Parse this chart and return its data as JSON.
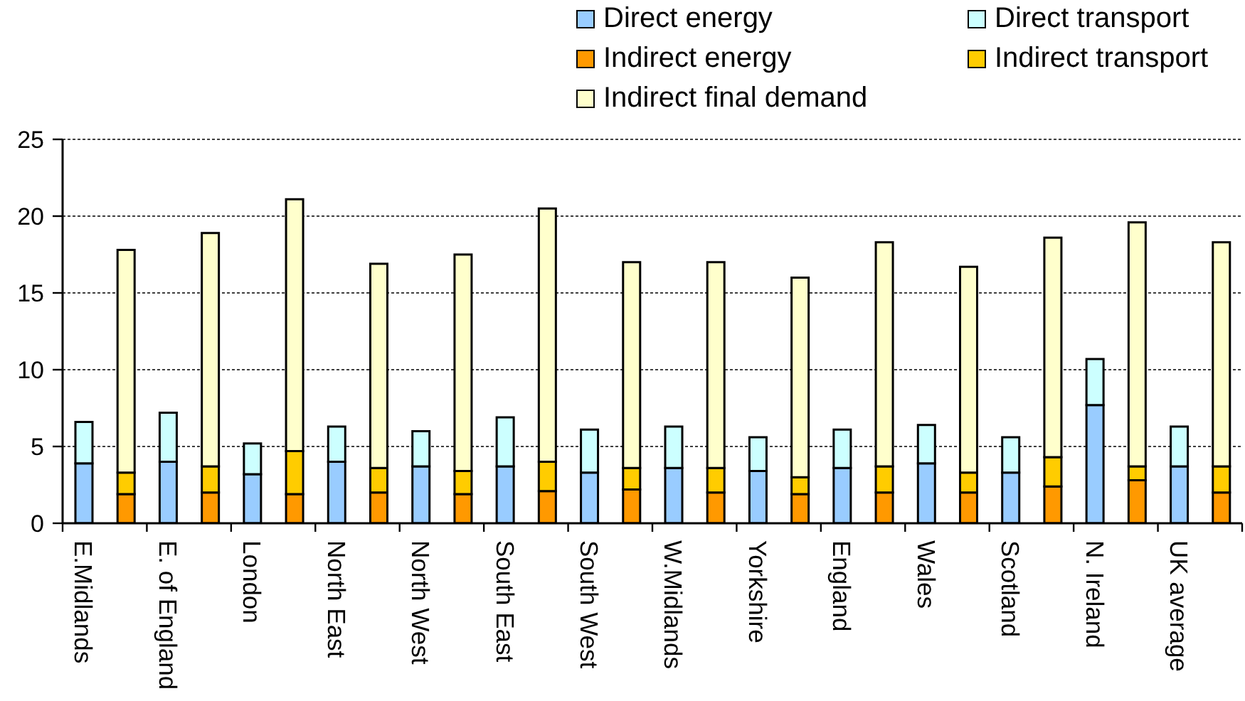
{
  "chart_data": {
    "type": "bar",
    "stacked": true,
    "categories": [
      "E.Midlands",
      null,
      "E. of England",
      null,
      "London",
      null,
      "North East",
      null,
      "North West",
      null,
      "South East",
      null,
      "South West",
      null,
      "W.Midlands",
      null,
      "Yorkshire",
      null,
      "England",
      null,
      "Wales",
      null,
      "Scotland",
      null,
      "N. Ireland",
      null,
      "UK average",
      null
    ],
    "series": [
      {
        "name": "Direct energy",
        "color": "#99ccff",
        "values": [
          3.9,
          null,
          4.0,
          null,
          3.2,
          null,
          4.0,
          null,
          3.7,
          null,
          3.7,
          null,
          3.3,
          null,
          3.6,
          null,
          3.4,
          null,
          3.6,
          null,
          3.9,
          null,
          3.3,
          null,
          7.7,
          null,
          3.7,
          null
        ]
      },
      {
        "name": "Direct transport",
        "color": "#ccffff",
        "values": [
          2.7,
          null,
          3.2,
          null,
          2.0,
          null,
          2.3,
          null,
          2.3,
          null,
          3.2,
          null,
          2.8,
          null,
          2.7,
          null,
          2.2,
          null,
          2.5,
          null,
          2.5,
          null,
          2.3,
          null,
          3.0,
          null,
          2.6,
          null
        ]
      },
      {
        "name": "Indirect energy",
        "color": "#ff9900",
        "values": [
          null,
          1.9,
          null,
          2.0,
          null,
          1.9,
          null,
          2.0,
          null,
          1.9,
          null,
          2.1,
          null,
          2.2,
          null,
          2.0,
          null,
          1.9,
          null,
          2.0,
          null,
          2.0,
          null,
          2.4,
          null,
          2.8,
          null,
          2.0
        ]
      },
      {
        "name": "Indirect transport",
        "color": "#ffcc00",
        "values": [
          null,
          1.4,
          null,
          1.7,
          null,
          2.8,
          null,
          1.6,
          null,
          1.5,
          null,
          1.9,
          null,
          1.4,
          null,
          1.6,
          null,
          1.1,
          null,
          1.7,
          null,
          1.3,
          null,
          1.9,
          null,
          0.9,
          null,
          1.7
        ]
      },
      {
        "name": "Indirect final demand",
        "color": "#ffffcc",
        "values": [
          null,
          14.5,
          null,
          15.2,
          null,
          16.4,
          null,
          13.3,
          null,
          14.1,
          null,
          16.5,
          null,
          13.4,
          null,
          13.4,
          null,
          13.0,
          null,
          14.6,
          null,
          13.4,
          null,
          14.3,
          null,
          15.9,
          null,
          14.6
        ]
      }
    ],
    "ylim": [
      0,
      25
    ],
    "yticks": [
      0,
      5,
      10,
      15,
      20,
      25
    ],
    "grid": "y",
    "legend": "top right"
  }
}
